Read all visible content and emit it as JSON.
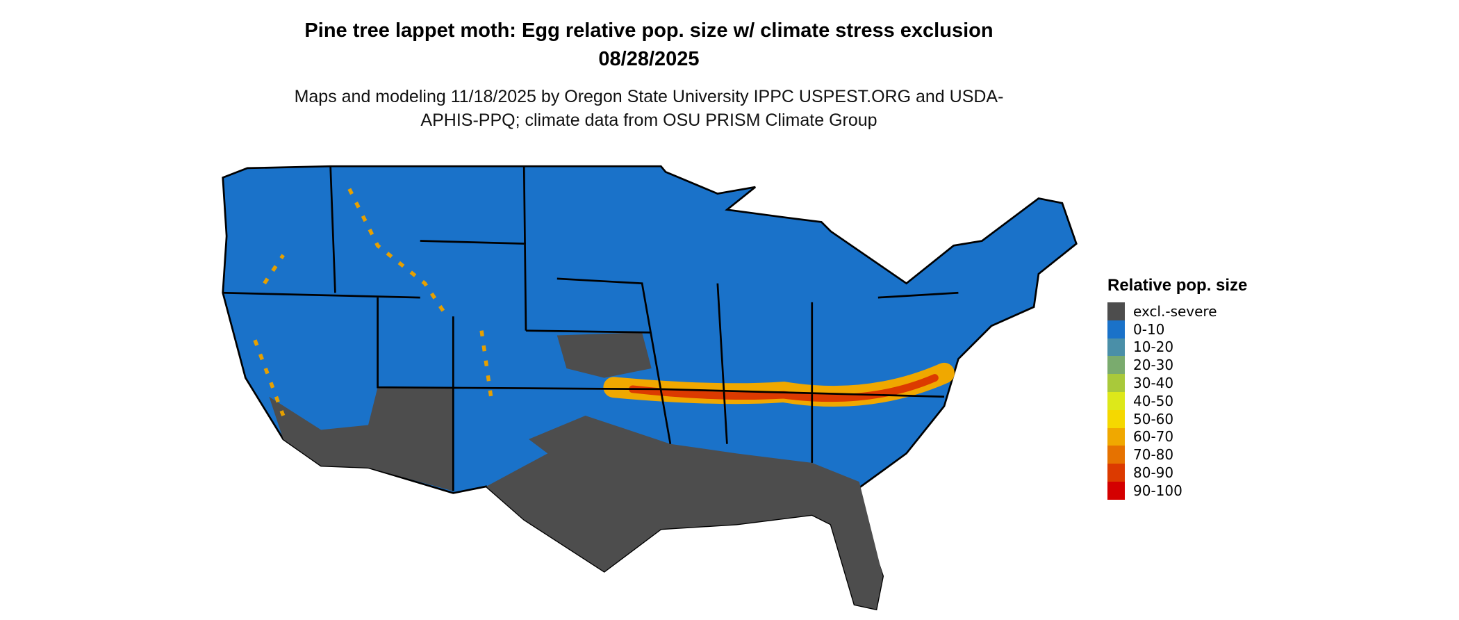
{
  "title": "Pine tree lappet moth: Egg relative pop. size w/ climate stress exclusion 08/28/2025",
  "subtitle": "Maps and modeling 11/18/2025 by Oregon State University IPPC USPEST.ORG and USDA-APHIS-PPQ; climate data from OSU PRISM Climate Group",
  "legend": {
    "title": "Relative pop. size",
    "items": [
      {
        "label": "excl.-severe",
        "color": "#4d4d4d"
      },
      {
        "label": "0-10",
        "color": "#1a72c9"
      },
      {
        "label": "10-20",
        "color": "#4a8fa8"
      },
      {
        "label": "20-30",
        "color": "#7aab6e"
      },
      {
        "label": "30-40",
        "color": "#a9c93a"
      },
      {
        "label": "40-50",
        "color": "#dde81a"
      },
      {
        "label": "50-60",
        "color": "#f5d800"
      },
      {
        "label": "60-70",
        "color": "#f0a800"
      },
      {
        "label": "70-80",
        "color": "#e67200"
      },
      {
        "label": "80-90",
        "color": "#dc3a00"
      },
      {
        "label": "90-100",
        "color": "#d40000"
      }
    ]
  }
}
